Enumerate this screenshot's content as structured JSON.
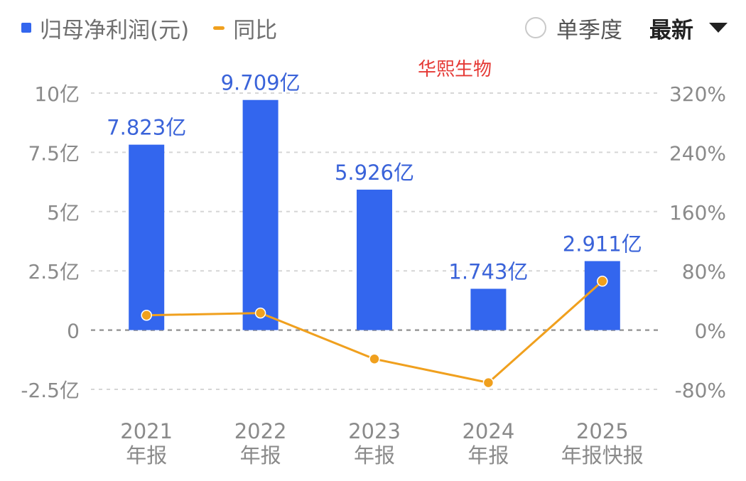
{
  "legend": {
    "bar_label": "归母净利润(元)",
    "line_label": "同比"
  },
  "controls": {
    "quarter_label": "单季度",
    "period_label": "最新"
  },
  "colors": {
    "bar": "#3366ee",
    "line": "#f0a01e",
    "grid": "#d6d6d6",
    "axis_text": "#8a8a8a",
    "bar_label": "#3a63d9",
    "watermark": "#e53935"
  },
  "chart_data": {
    "type": "bar",
    "watermark": "华熙生物",
    "categories": [
      [
        "2021",
        "年报"
      ],
      [
        "2022",
        "年报"
      ],
      [
        "2023",
        "年报"
      ],
      [
        "2024",
        "年报"
      ],
      [
        "2025",
        "年报快报"
      ]
    ],
    "series": [
      {
        "name": "归母净利润(元)",
        "type": "bar",
        "axis": "left",
        "values": [
          7.823,
          9.709,
          5.926,
          1.743,
          2.911
        ],
        "labels": [
          "7.823亿",
          "9.709亿",
          "5.926亿",
          "1.743亿",
          "2.911亿"
        ]
      },
      {
        "name": "同比",
        "type": "line",
        "axis": "right",
        "values": [
          20,
          23,
          -39,
          -71,
          66
        ]
      }
    ],
    "y_left": {
      "range": [
        -2.5,
        10
      ],
      "ticks": [
        10,
        7.5,
        5,
        2.5,
        0,
        -2.5
      ],
      "tick_labels": [
        "10亿",
        "7.5亿",
        "5亿",
        "2.5亿",
        "0",
        "-2.5亿"
      ]
    },
    "y_right": {
      "range": [
        -80,
        320
      ],
      "ticks": [
        320,
        240,
        160,
        80,
        0,
        -80
      ],
      "tick_labels": [
        "320%",
        "240%",
        "160%",
        "80%",
        "0%",
        "-80%"
      ]
    },
    "grid": true,
    "legend_position": "top-left"
  }
}
